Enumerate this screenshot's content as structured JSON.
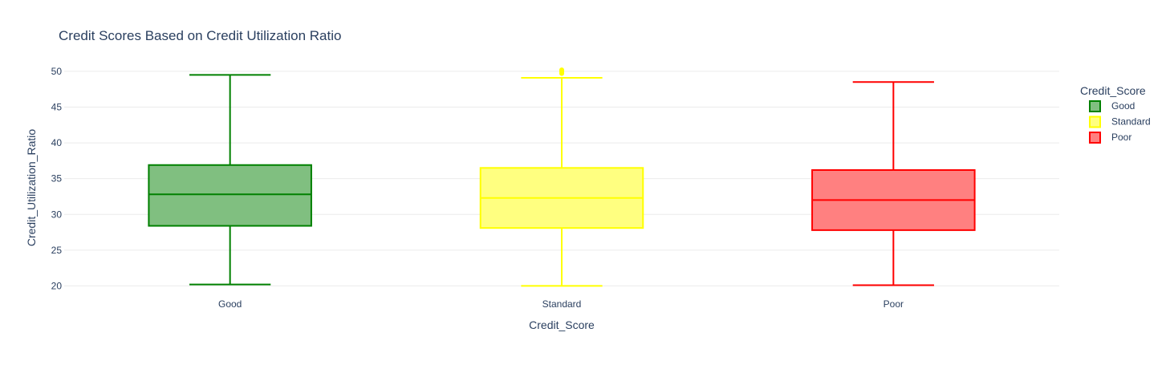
{
  "chart_data": {
    "type": "box",
    "title": "Credit Scores Based on Credit Utilization Ratio",
    "xlabel": "Credit_Score",
    "ylabel": "Credit_Utilization_Ratio",
    "categories": [
      "Good",
      "Standard",
      "Poor"
    ],
    "ylim": [
      19.6,
      51
    ],
    "yticks": [
      20,
      25,
      30,
      35,
      40,
      45,
      50
    ],
    "grid": true,
    "legend": {
      "title": "Credit_Score",
      "placement": "top-right"
    },
    "series": [
      {
        "name": "Good",
        "color": "#008000",
        "fill": "#80bf80",
        "lower_whisker": 20.2,
        "q1": 28.4,
        "median": 32.8,
        "q3": 36.9,
        "upper_whisker": 49.5,
        "outliers": []
      },
      {
        "name": "Standard",
        "color": "#ffff00",
        "fill": "#ffff80",
        "lower_whisker": 20.0,
        "q1": 28.1,
        "median": 32.3,
        "q3": 36.5,
        "upper_whisker": 49.1,
        "outliers": [
          49.7,
          49.9,
          50.0,
          50.1,
          50.2
        ]
      },
      {
        "name": "Poor",
        "color": "#ff0000",
        "fill": "#ff8080",
        "lower_whisker": 20.1,
        "q1": 27.8,
        "median": 32.0,
        "q3": 36.2,
        "upper_whisker": 48.5,
        "outliers": []
      }
    ]
  }
}
